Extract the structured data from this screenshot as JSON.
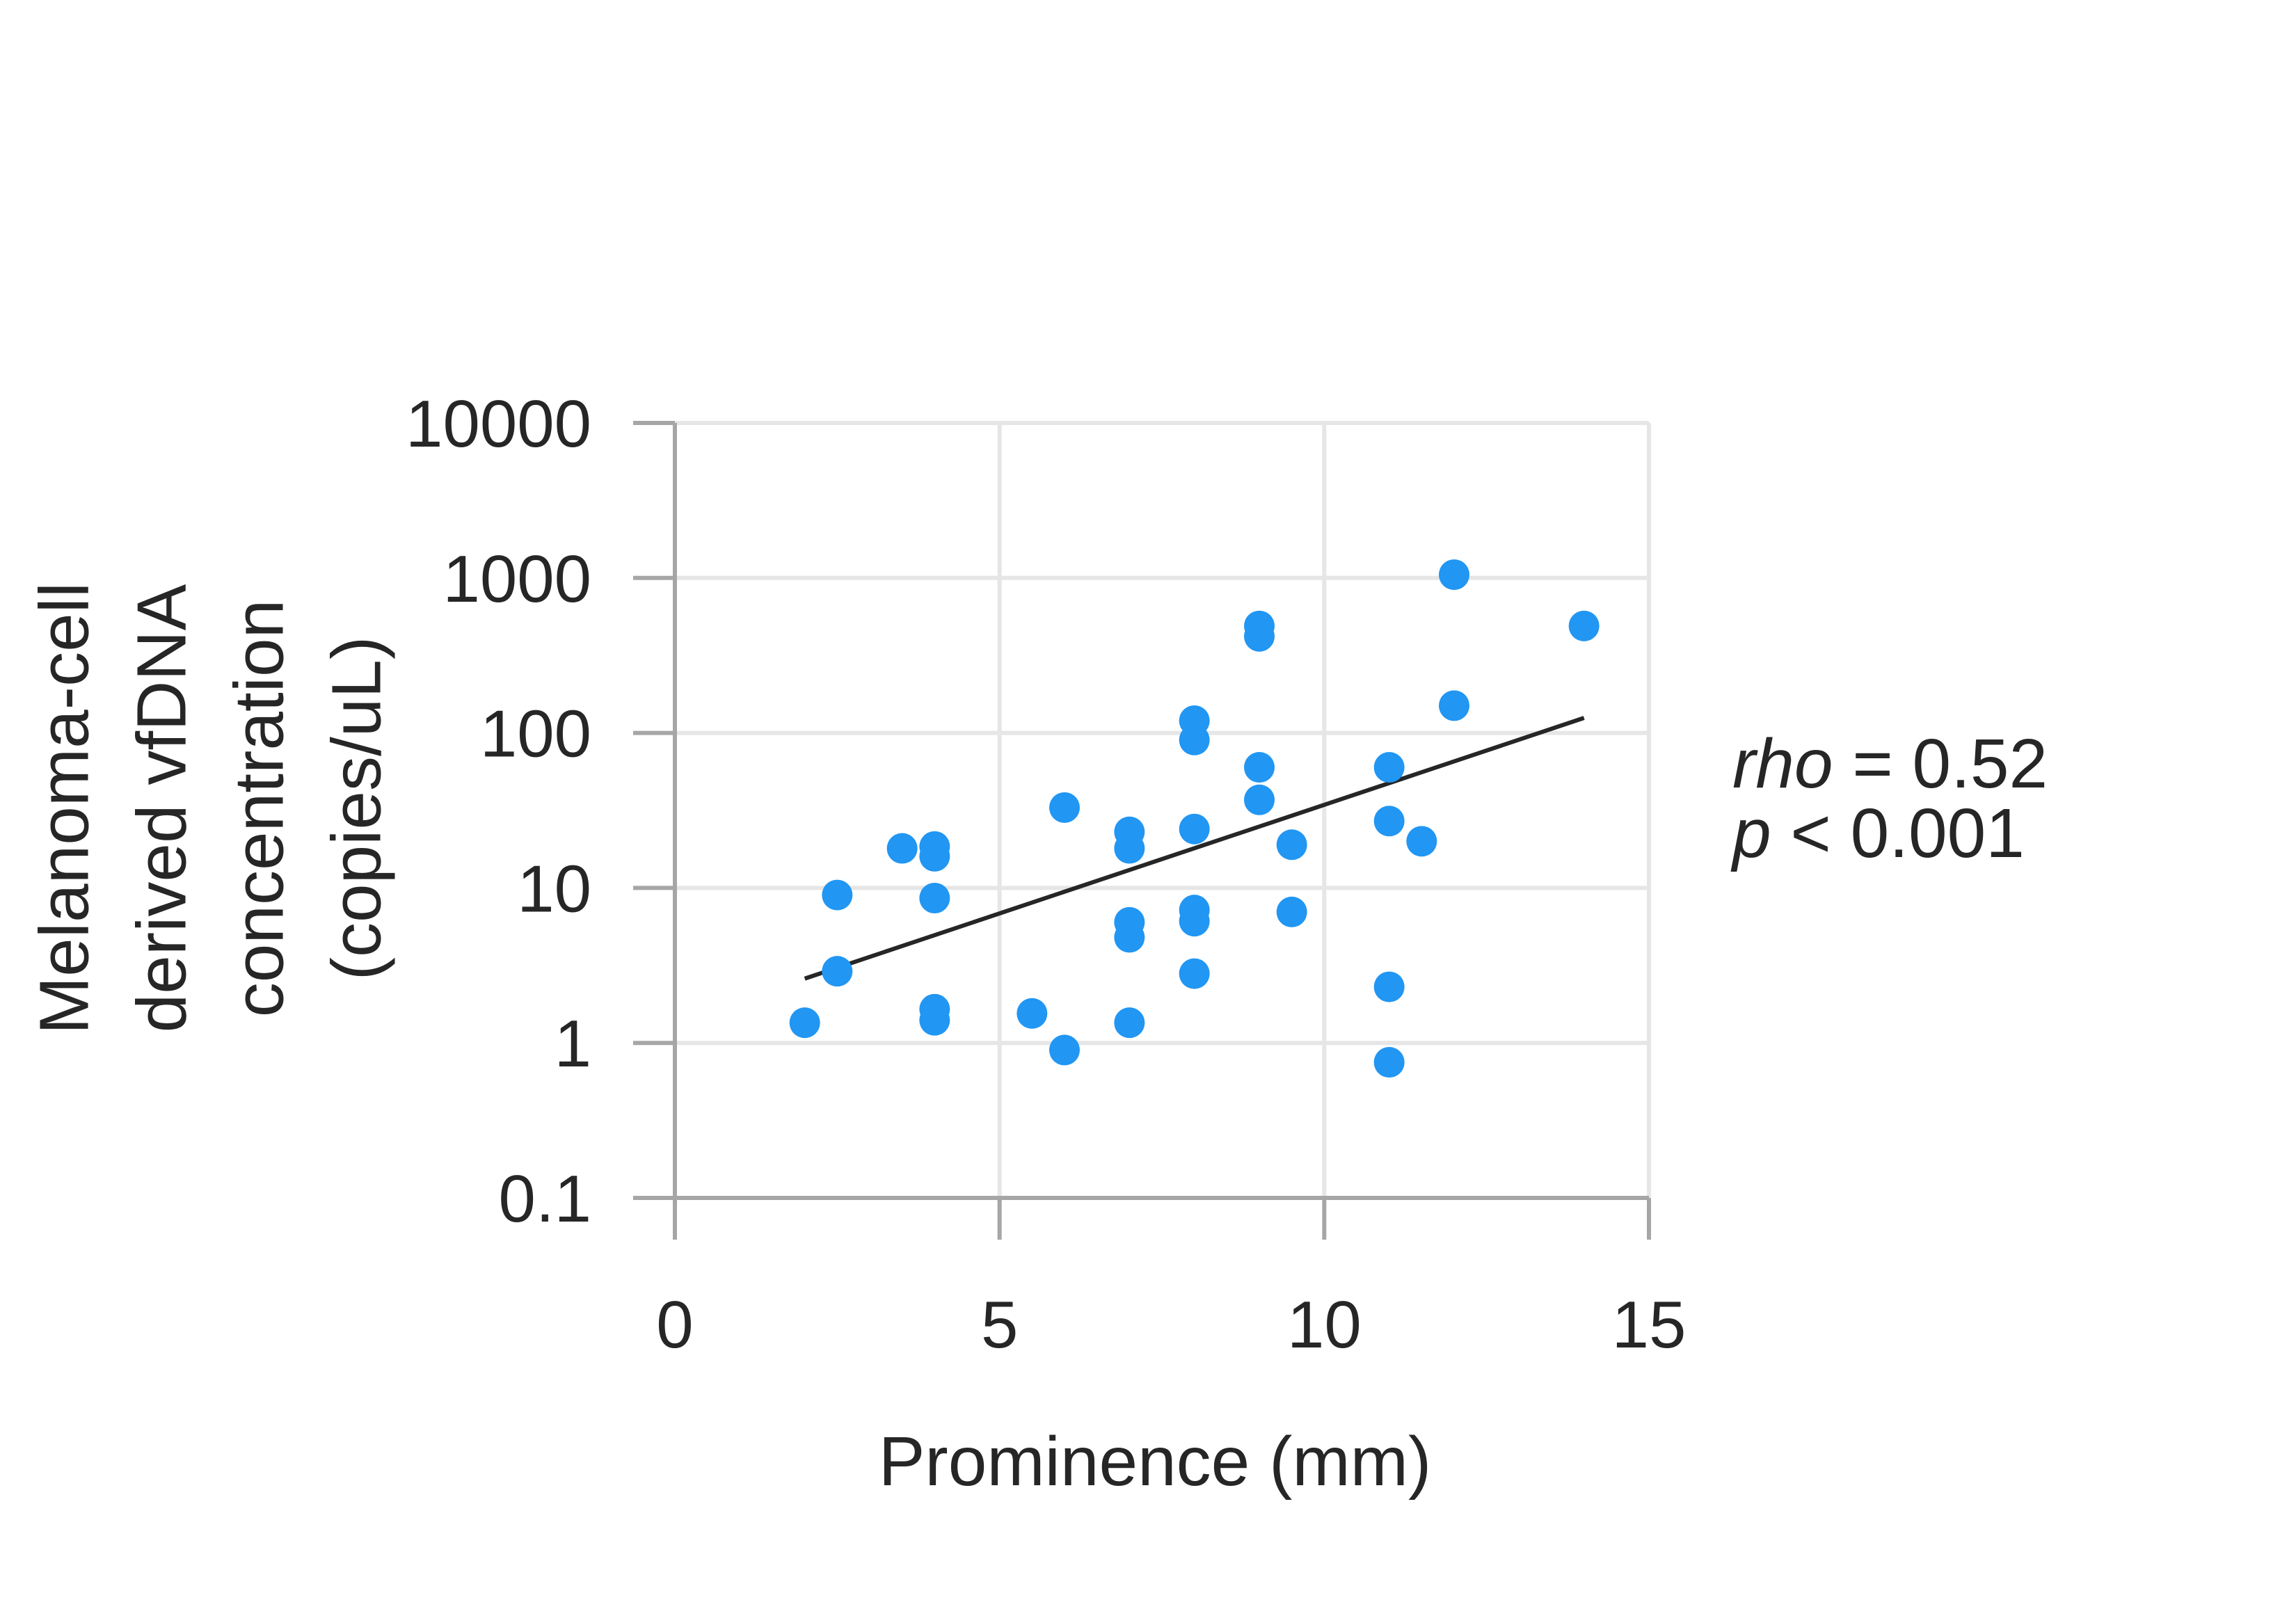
{
  "chart_data": {
    "type": "scatter",
    "xlabel": "Prominence (mm)",
    "ylabel_lines": [
      "Melanoma-cell",
      "derived vfDNA",
      "concentration",
      "(copies/uL)"
    ],
    "xlim": [
      0,
      15
    ],
    "ylim": [
      0.1,
      10000
    ],
    "yscale": "log",
    "x_ticks": [
      0,
      5,
      10,
      15
    ],
    "y_ticks": [
      0.1,
      1,
      10,
      100,
      1000,
      10000
    ],
    "x_tick_labels": [
      "0",
      "5",
      "10",
      "15"
    ],
    "y_tick_labels": [
      "0.1",
      "1",
      "10",
      "100",
      "1000",
      "10000"
    ],
    "grid": true,
    "marker_color": "#2196F3",
    "points": [
      {
        "x": 2.0,
        "y": 1.35
      },
      {
        "x": 2.5,
        "y": 9.0
      },
      {
        "x": 2.5,
        "y": 2.9
      },
      {
        "x": 3.5,
        "y": 18.0
      },
      {
        "x": 4.0,
        "y": 18.5
      },
      {
        "x": 4.0,
        "y": 16.0
      },
      {
        "x": 4.0,
        "y": 8.6
      },
      {
        "x": 4.0,
        "y": 1.65
      },
      {
        "x": 4.0,
        "y": 1.4
      },
      {
        "x": 5.5,
        "y": 1.55
      },
      {
        "x": 6.0,
        "y": 33.0
      },
      {
        "x": 6.0,
        "y": 0.9
      },
      {
        "x": 7.0,
        "y": 23.0
      },
      {
        "x": 7.0,
        "y": 18.0
      },
      {
        "x": 7.0,
        "y": 6.0
      },
      {
        "x": 7.0,
        "y": 4.8
      },
      {
        "x": 7.0,
        "y": 1.35
      },
      {
        "x": 8.0,
        "y": 120.0
      },
      {
        "x": 8.0,
        "y": 90.0
      },
      {
        "x": 8.0,
        "y": 24.0
      },
      {
        "x": 8.0,
        "y": 7.2
      },
      {
        "x": 8.0,
        "y": 6.1
      },
      {
        "x": 8.0,
        "y": 2.8
      },
      {
        "x": 9.0,
        "y": 490.0
      },
      {
        "x": 9.0,
        "y": 420.0
      },
      {
        "x": 9.0,
        "y": 60.0
      },
      {
        "x": 9.0,
        "y": 37.0
      },
      {
        "x": 9.5,
        "y": 19.0
      },
      {
        "x": 9.5,
        "y": 7.0
      },
      {
        "x": 11.0,
        "y": 60.0
      },
      {
        "x": 11.0,
        "y": 27.0
      },
      {
        "x": 11.0,
        "y": 2.3
      },
      {
        "x": 11.0,
        "y": 0.75
      },
      {
        "x": 11.5,
        "y": 20.0
      },
      {
        "x": 12.0,
        "y": 1050.0
      },
      {
        "x": 12.0,
        "y": 150.0
      },
      {
        "x": 14.0,
        "y": 490.0
      }
    ],
    "trendline": {
      "x": [
        2.0,
        14.0
      ],
      "y": [
        2.6,
        125.0
      ],
      "color": "#262626"
    },
    "annotations": {
      "rho_label": "rho",
      "rho_value": " = 0.52",
      "p_label": "p",
      "p_value": " < 0.001"
    }
  }
}
